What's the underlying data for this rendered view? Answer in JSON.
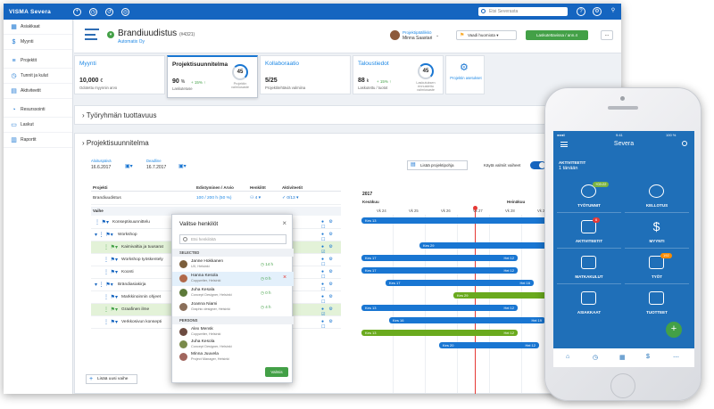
{
  "topbar": {
    "logo": "VISMA Severa",
    "search_placeholder": "Etsi Severasta"
  },
  "sidebar": {
    "items": [
      {
        "label": "Asiakkaat",
        "icon": "building-icon"
      },
      {
        "label": "Myynti",
        "icon": "dollar-icon"
      },
      {
        "label": "Projektit",
        "icon": "projects-icon"
      },
      {
        "label": "Tunnit ja kulut",
        "icon": "clock-icon"
      },
      {
        "label": "Aktiviteetit",
        "icon": "calendar-icon"
      },
      {
        "label": "Resurssointi",
        "icon": "resources-icon"
      },
      {
        "label": "Laskut",
        "icon": "invoice-icon"
      },
      {
        "label": "Raportit",
        "icon": "chart-icon"
      }
    ]
  },
  "header": {
    "project_title": "Brandiuudistus",
    "project_code": "(#4321)",
    "company": "Automatix Oy",
    "pm_role": "Projektipäällikkö",
    "pm_name": "Minna Saastari",
    "flag_button": "Vaadi huomiota",
    "green_button": "Laskutettavissa / ann.4",
    "more_button": "..."
  },
  "cards": [
    {
      "title": "Myynti",
      "value": "10,000",
      "unit": "€",
      "sub": "Odotettu myynnin arvo"
    },
    {
      "title": "Projektisuunnitelma",
      "value": "90",
      "unit": "%",
      "delta": "+ 15% ↑",
      "sub": "Laskutetuse",
      "ring": "45",
      "ring_unit": "%",
      "ring_caption": "Projektin valmiusaste"
    },
    {
      "title": "Kollaboraatio",
      "value": "5/25",
      "unit": "",
      "sub": "Projektitehtäviä valmiina"
    },
    {
      "title": "Taloustiedot",
      "value": "88",
      "unit": "k",
      "delta": "+ 15% ↑",
      "sub": "Laskutettu / tuotot",
      "ring": "45",
      "ring_unit": "%",
      "ring_caption": "Laskutuksen ennustettu valmiusaste"
    },
    {
      "title": "",
      "gear_caption": "Projektin asetukset"
    }
  ],
  "sections": {
    "team": "Työryhmän tuottavuus",
    "plan": "Projektisuunnitelma"
  },
  "plan": {
    "start_label": "Aloituspäivä",
    "start_value": "16.6.2017",
    "end_label": "Deadline",
    "end_value": "16.7.2017",
    "template_button": "Lisää projektipohja",
    "toggle_label": "Käytä valmiit vaiheet",
    "add_phase": "Lisää uusi vaihe",
    "col_project": "Projekti",
    "col_estimate": "Edistyminen / Arvio",
    "col_people": "Henkilöt",
    "col_activities": "Aktiviteetit",
    "col_phase": "Vaihe",
    "project_row": {
      "name": "Brandiuudistus",
      "estimate": "100 / 200 h (50 %)",
      "people": "4",
      "activities": "0/13"
    },
    "rows": [
      {
        "name": "Konseptisuunnittelu",
        "act": "3/4",
        "green": false
      },
      {
        "name": "Workshop",
        "act": "2/4",
        "green": false
      },
      {
        "name": "Kaimivaltia ja tuusarat",
        "act": "2/2",
        "green": true
      },
      {
        "name": "Workshop työskentely",
        "act": "1/3",
        "green": false
      },
      {
        "name": "Koonti",
        "act": "2/5",
        "green": false
      },
      {
        "name": "Brändiasiakirja",
        "act": "1/2",
        "green": false
      },
      {
        "name": "Markkinoinnin ohjeet",
        "act": "2/4",
        "green": false
      },
      {
        "name": "Graafinen ilme",
        "act": "3/3",
        "green": true
      },
      {
        "name": "Verkkosivun konsepti",
        "act": "0/4",
        "green": false
      }
    ],
    "gantt": {
      "year": "2017",
      "month1": "Kesäkuu",
      "month2": "Heinäkuu",
      "weeks": [
        "Vk 24",
        "Vk 25",
        "Vk 26",
        "Vk 27",
        "Vk 28",
        "Vk 29"
      ],
      "bars": [
        {
          "start": "Kes 13",
          "end": ""
        },
        {
          "start": "Kes 29",
          "end": ""
        },
        {
          "start": "Kes 17",
          "end": "Hei 12"
        },
        {
          "start": "Kes 17",
          "end": "Hei 12"
        },
        {
          "start": "Kes 17",
          "end": "Hei 16"
        },
        {
          "start": "Kes 29",
          "end": ""
        },
        {
          "start": "Kes 13",
          "end": "Hei 12"
        },
        {
          "start": "Kes 16",
          "end": "Hei 19"
        },
        {
          "start": "Kes 13",
          "end": "Hei 12"
        },
        {
          "start": "Kes 20",
          "end": "Hei 12"
        }
      ]
    }
  },
  "dialog": {
    "title": "Valitse henkilöt",
    "search_placeholder": "Etsi henkilöitä",
    "selected_label": "SELECTED",
    "persons_label": "PERSONS",
    "selected": [
      {
        "name": "Janne Hokkanen",
        "role": "UX, Helsinki",
        "hours": "14 h",
        "color": "#7b5e3b"
      },
      {
        "name": "Hanna Kesola",
        "role": "Copywriter, Helsinki",
        "hours": "0 h",
        "color": "#b0694a"
      },
      {
        "name": "Juha Kesala",
        "role": "Concept Designer, Helsinki",
        "hours": "0 h",
        "color": "#5d7a3a"
      },
      {
        "name": "Joanna Niami",
        "role": "Graphic designer, Helsinki",
        "hours": "4 h",
        "color": "#8a6f5a"
      }
    ],
    "persons": [
      {
        "name": "Alex Mensk",
        "role": "Copywriter, Helsinki",
        "color": "#6d4c41"
      },
      {
        "name": "Juha Kesola",
        "role": "Concept Designer, Helsinki",
        "color": "#7a8a4a"
      },
      {
        "name": "Minna Juuvela",
        "role": "Project Manager, Helsinki",
        "color": "#a1665e"
      }
    ],
    "confirm": "Valmis"
  },
  "phone": {
    "carrier": "●●●ll",
    "time": "9:41",
    "battery": "100 %",
    "app_title": "Severa",
    "activities_label": "AKTIVITEETIT",
    "activities_value": "1 tänään",
    "tiles": [
      {
        "label": "TYÖTUNNIT",
        "badge": "+03:22",
        "badge_color": "g"
      },
      {
        "label": "KELLOTUS",
        "badge": "",
        "badge_color": ""
      },
      {
        "label": "AKTIVITEETIT",
        "badge": "6",
        "badge_color": "r"
      },
      {
        "label": "MYYNTI",
        "badge": "",
        "badge_color": ""
      },
      {
        "label": "MATKAKULUT",
        "badge": "",
        "badge_color": ""
      },
      {
        "label": "TYÖT",
        "badge": "192",
        "badge_color": "o"
      },
      {
        "label": "ASIAKKAAT",
        "badge": "",
        "badge_color": ""
      },
      {
        "label": "TUOTTEET",
        "badge": "",
        "badge_color": ""
      }
    ],
    "fab": "+"
  }
}
